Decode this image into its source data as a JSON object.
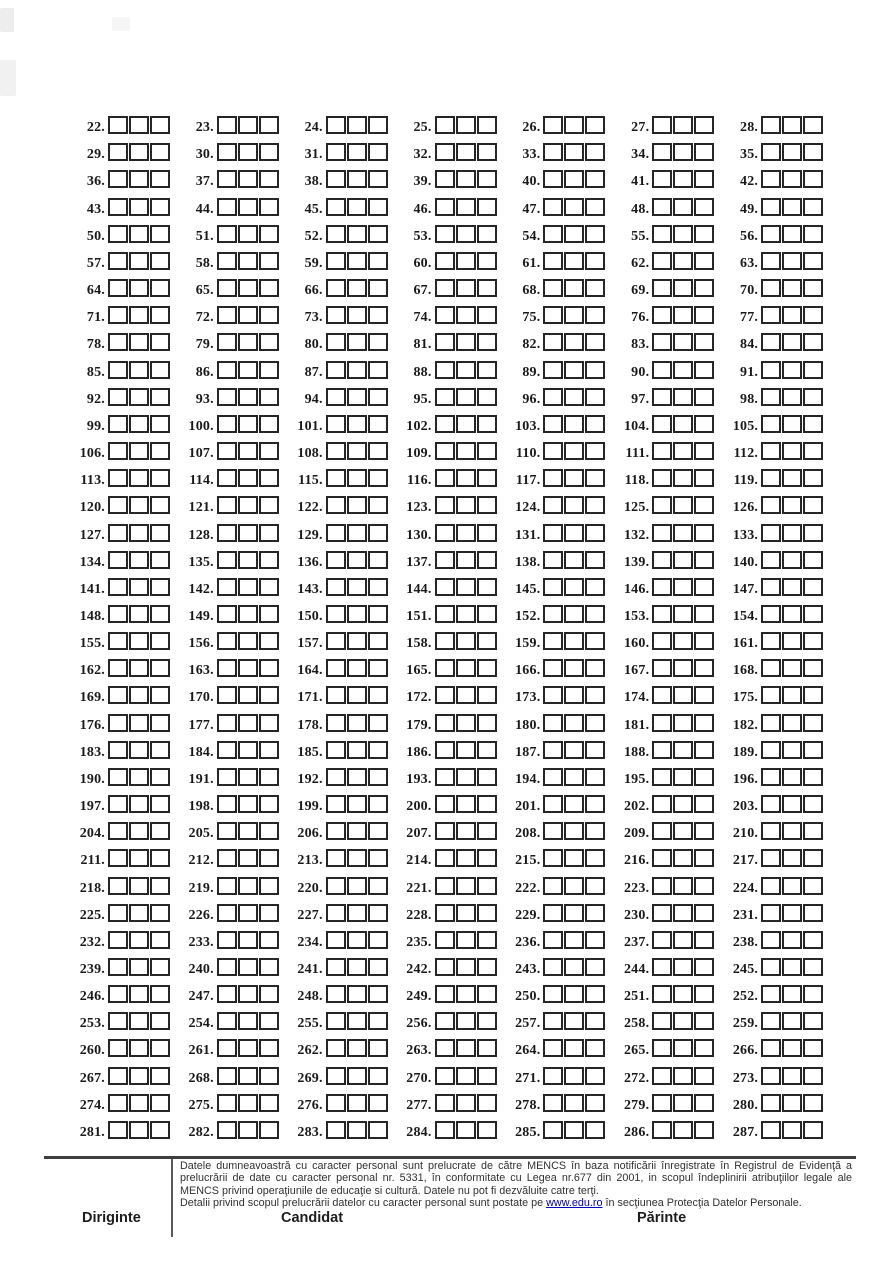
{
  "page": {
    "type": "exam-answer-form",
    "background": "#ffffff",
    "ink_color": "#262626"
  },
  "grid": {
    "columns": 7,
    "boxes_per_item": 3,
    "label_suffix": ".",
    "first_item": 22,
    "last_item": 287,
    "items": [
      22,
      23,
      24,
      25,
      26,
      27,
      28,
      29,
      30,
      31,
      32,
      33,
      34,
      35,
      36,
      37,
      38,
      39,
      40,
      41,
      42,
      43,
      44,
      45,
      46,
      47,
      48,
      49,
      50,
      51,
      52,
      53,
      54,
      55,
      56,
      57,
      58,
      59,
      60,
      61,
      62,
      63,
      64,
      65,
      66,
      67,
      68,
      69,
      70,
      71,
      72,
      73,
      74,
      75,
      76,
      77,
      78,
      79,
      80,
      81,
      82,
      83,
      84,
      85,
      86,
      87,
      88,
      89,
      90,
      91,
      92,
      93,
      94,
      95,
      96,
      97,
      98,
      99,
      100,
      101,
      102,
      103,
      104,
      105,
      106,
      107,
      108,
      109,
      110,
      111,
      112,
      113,
      114,
      115,
      116,
      117,
      118,
      119,
      120,
      121,
      122,
      123,
      124,
      125,
      126,
      127,
      128,
      129,
      130,
      131,
      132,
      133,
      134,
      135,
      136,
      137,
      138,
      139,
      140,
      141,
      142,
      143,
      144,
      145,
      146,
      147,
      148,
      149,
      150,
      151,
      152,
      153,
      154,
      155,
      156,
      157,
      158,
      159,
      160,
      161,
      162,
      163,
      164,
      165,
      166,
      167,
      168,
      169,
      170,
      171,
      172,
      173,
      174,
      175,
      176,
      177,
      178,
      179,
      180,
      181,
      182,
      183,
      184,
      185,
      186,
      187,
      188,
      189,
      190,
      191,
      192,
      193,
      194,
      195,
      196,
      197,
      198,
      199,
      200,
      201,
      202,
      203,
      204,
      205,
      206,
      207,
      208,
      209,
      210,
      211,
      212,
      213,
      214,
      215,
      216,
      217,
      218,
      219,
      220,
      221,
      222,
      223,
      224,
      225,
      226,
      227,
      228,
      229,
      230,
      231,
      232,
      233,
      234,
      235,
      236,
      237,
      238,
      239,
      240,
      241,
      242,
      243,
      244,
      245,
      246,
      247,
      248,
      249,
      250,
      251,
      252,
      253,
      254,
      255,
      256,
      257,
      258,
      259,
      260,
      261,
      262,
      263,
      264,
      265,
      266,
      267,
      268,
      269,
      270,
      271,
      272,
      273,
      274,
      275,
      276,
      277,
      278,
      279,
      280,
      281,
      282,
      283,
      284,
      285,
      286,
      287
    ]
  },
  "footer": {
    "legal_paragraph": "Datele dumneavoastră cu caracter personal sunt prelucrate de către MENCS în baza notificării înregistrate în Registrul de Evidenţă a prelucrării de date cu caracter personal nr. 5331, în conformitate cu Legea nr.677 din 2001, in scopul îndeplinirii atribuţiilor legale ale MENCS privind operaţiunile de educaţie si cultură. Datele nu pot fi dezvăluite catre terţi.",
    "details_prefix": "Detalii privind scopul prelucrării datelor cu caracter personal sunt postate pe ",
    "link_text": "www.edu.ro",
    "details_suffix": " în secţiunea  Protecţia Datelor Personale.",
    "link_color": "#0000bb",
    "signatures": [
      {
        "label": "Diriginte"
      },
      {
        "label": "Candidat"
      },
      {
        "label": "Părinte"
      }
    ]
  }
}
